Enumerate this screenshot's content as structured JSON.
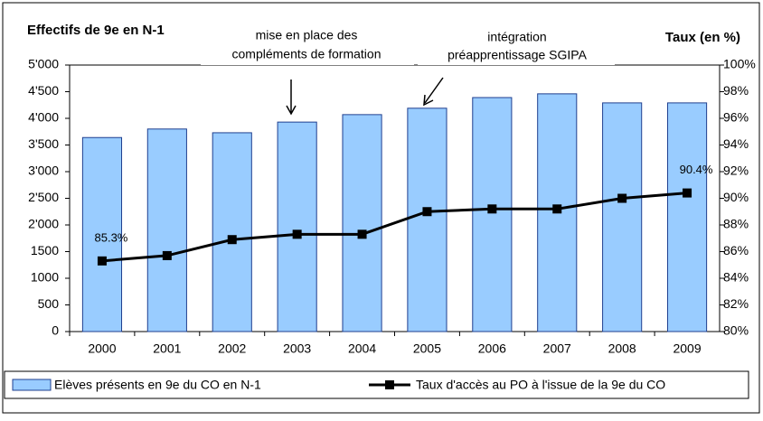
{
  "chart_data": {
    "type": "bar-line",
    "y_label": "Effectifs de 9e en N-1",
    "y2_label": "Taux (en %)",
    "annotations": [
      [
        "mise en place des",
        "compléments de formation"
      ],
      [
        "intégration",
        "préapprentissage SGIPA"
      ]
    ],
    "categories": [
      "2000",
      "2001",
      "2002",
      "2003",
      "2004",
      "2005",
      "2006",
      "2007",
      "2008",
      "2009"
    ],
    "series": [
      {
        "name": "Elèves présents en 9e du CO en N-1",
        "type": "bar",
        "color": "#99ccff",
        "values": [
          3640,
          3800,
          3730,
          3930,
          4070,
          4190,
          4390,
          4460,
          4290,
          4290
        ]
      },
      {
        "name": "Taux d'accès au PO à l'issue de la 9e du CO",
        "type": "line",
        "color": "#000000",
        "axis": "y2",
        "values": [
          85.3,
          85.7,
          86.9,
          87.3,
          87.3,
          89.0,
          89.2,
          89.2,
          90.0,
          90.4
        ],
        "value_labels": [
          "85.3%",
          null,
          null,
          null,
          null,
          null,
          null,
          null,
          null,
          "90.4%"
        ]
      }
    ],
    "ylim": [
      0,
      5000
    ],
    "yticks": [
      0,
      500,
      1000,
      1500,
      {
        "value": 2000,
        "label": "2'000"
      },
      {
        "value": 2500,
        "label": "2'500"
      },
      {
        "value": 3000,
        "label": "3'000"
      },
      {
        "value": 3500,
        "label": "3'500"
      },
      {
        "value": 4000,
        "label": "4'000"
      },
      {
        "value": 4500,
        "label": "4'500"
      },
      {
        "value": 5000,
        "label": "5'000"
      }
    ],
    "y2lim": [
      80,
      100
    ],
    "y2ticks": [
      {
        "value": 80,
        "label": "80%"
      },
      {
        "value": 82,
        "label": "82%"
      },
      {
        "value": 84,
        "label": "84%"
      },
      {
        "value": 86,
        "label": "86%"
      },
      {
        "value": 88,
        "label": "88%"
      },
      {
        "value": 90,
        "label": "90%"
      },
      {
        "value": 92,
        "label": "92%"
      },
      {
        "value": 94,
        "label": "94%"
      },
      {
        "value": 96,
        "label": "96%"
      },
      {
        "value": 98,
        "label": "98%"
      },
      {
        "value": 100,
        "label": "100%"
      }
    ],
    "grid": false
  }
}
